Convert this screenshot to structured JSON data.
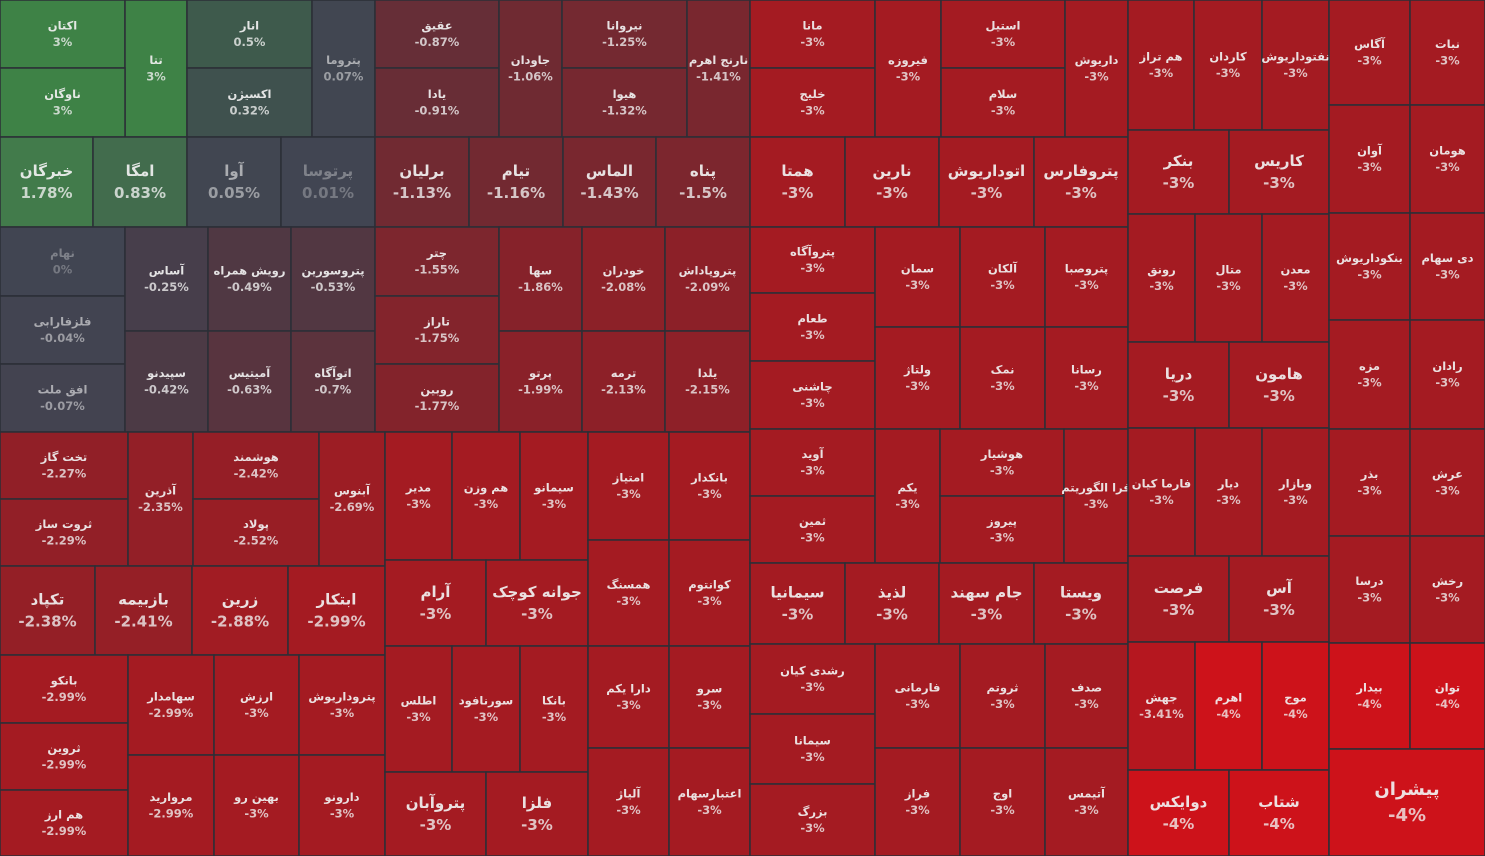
{
  "chart_data": {
    "type": "treemap",
    "categories": [
      "اکتان",
      "تتا",
      "ناوگان",
      "انار",
      "اکسیژن",
      "پتروما",
      "خبرگان",
      "امگا",
      "آوا",
      "پرتوسا",
      "عقیق",
      "یادا",
      "جاودان",
      "نیروانا",
      "هیوا",
      "نارنج اهرم",
      "برلیان",
      "تیام",
      "الماس",
      "پناه",
      "نهام",
      "فلزفارابی",
      "افق ملت",
      "آساس",
      "رویش همراه",
      "پتروسورین",
      "سپیدنو",
      "آمیتیس",
      "اتوآگاه",
      "چتر",
      "تاراز",
      "روبین",
      "سها",
      "خودران",
      "پتروپاداش",
      "پرتو",
      "ترمه",
      "یلدا",
      "تخت گاز",
      "ثروت ساز",
      "آذرین",
      "هوشمند",
      "پولاد",
      "آبنوس",
      "تکپاد",
      "بازبیمه",
      "زرین",
      "ابتکار",
      "بانکو",
      "ثروین",
      "هم ارز",
      "سهامدار",
      "ارزش",
      "پتروداریوش",
      "مرواريد",
      "بهین رو",
      "دارونو",
      "مدیر",
      "هم وزن",
      "سیمانو",
      "آرام",
      "جوانه کوچک",
      "اطلس",
      "سورنافود",
      "بانکا",
      "پتروآبان",
      "فلزا",
      "امتیاز",
      "بانکدار",
      "همسنگ",
      "کوانتوم",
      "دارا یکم",
      "سرو",
      "آلیاژ",
      "اعتبارسهام",
      "مانا",
      "خلیج",
      "فیروزه",
      "استیل",
      "سلام",
      "داریوش",
      "همتا",
      "نارین",
      "اتوداریوش",
      "پتروفارس",
      "پتروآگاه",
      "طعام",
      "چاشنی",
      "سمان",
      "آلکان",
      "پتروصبا",
      "ولتاژ",
      "نمک",
      "رسانا",
      "آوید",
      "ثمین",
      "یکم",
      "هوشیار",
      "پیروز",
      "فرا الگوریتم",
      "سیمانیا",
      "لذیذ",
      "جام سهند",
      "ویستا",
      "رشدی کیان",
      "سیمانا",
      "بزرگ",
      "فارمانی",
      "ثروتم",
      "صدف",
      "فراز",
      "اوج",
      "آتیمس",
      "هم تراز",
      "کاردان",
      "نفتوداریوش",
      "آگاس",
      "نبات",
      "بنکر",
      "کاریس",
      "آوان",
      "هومان",
      "رونق",
      "متال",
      "معدن",
      "بنکوداریوش",
      "دی سهام",
      "دریا",
      "هامون",
      "مزه",
      "رادان",
      "فارما کیان",
      "دیار",
      "وبازار",
      "بذر",
      "عرش",
      "فرصت",
      "آس",
      "درسا",
      "رخش",
      "جهش",
      "اهرم",
      "موج",
      "بیدار",
      "توان",
      "دوایکس",
      "شتاب",
      "پیشران"
    ],
    "values": [
      3,
      3,
      3,
      0.5,
      0.32,
      0.07,
      1.78,
      0.83,
      0.05,
      0.01,
      -0.87,
      -0.91,
      -1.06,
      -1.25,
      -1.32,
      -1.41,
      -1.13,
      -1.16,
      -1.43,
      -1.5,
      0,
      -0.04,
      -0.07,
      -0.25,
      -0.49,
      -0.53,
      -0.42,
      -0.63,
      -0.7,
      -1.55,
      -1.75,
      -1.77,
      -1.86,
      -2.08,
      -2.09,
      -1.99,
      -2.13,
      -2.15,
      -2.27,
      -2.29,
      -2.35,
      -2.42,
      -2.52,
      -2.69,
      -2.38,
      -2.41,
      -2.88,
      -2.99,
      -2.99,
      -2.99,
      -2.99,
      -2.99,
      -3,
      -3,
      -2.99,
      -3,
      -3,
      -3,
      -3,
      -3,
      -3,
      -3,
      -3,
      -3,
      -3,
      -3,
      -3,
      -3,
      -3,
      -3,
      -3,
      -3,
      -3,
      -3,
      -3,
      -3,
      -3,
      -3,
      -3,
      -3,
      -3,
      -3,
      -3,
      -3,
      -3,
      -3,
      -3,
      -3,
      -3,
      -3,
      -3,
      -3,
      -3,
      -3,
      -3,
      -3,
      -3,
      -3,
      -3,
      -3,
      -3,
      -3,
      -3,
      -3,
      -3,
      -3,
      -3,
      -3,
      -3,
      -3,
      -3,
      -3,
      -3,
      -3,
      -3,
      -3,
      -3,
      -3,
      -3,
      -3,
      -3,
      -3,
      -3,
      -3,
      -3,
      -3,
      -3,
      -3,
      -3,
      -3,
      -3,
      -3,
      -3,
      -3,
      -3,
      -3,
      -3,
      -3,
      -3,
      -3,
      -3.41,
      -4,
      -4,
      -4,
      -4,
      -4,
      -4,
      -4
    ],
    "value_labels": [
      "3%",
      "3%",
      "3%",
      "0.5%",
      "0.32%",
      "0.07%",
      "1.78%",
      "0.83%",
      "0.05%",
      "0.01%",
      "-0.87%",
      "-0.91%",
      "-1.06%",
      "-1.25%",
      "-1.32%",
      "-1.41%",
      "-1.13%",
      "-1.16%",
      "-1.43%",
      "-1.5%",
      "0%",
      "-0.04%",
      "-0.07%",
      "-0.25%",
      "-0.49%",
      "-0.53%",
      "-0.42%",
      "-0.63%",
      "-0.7%",
      "-1.55%",
      "-1.75%",
      "-1.77%",
      "-1.86%",
      "-2.08%",
      "-2.09%",
      "-1.99%",
      "-2.13%",
      "-2.15%",
      "-2.27%",
      "-2.29%",
      "-2.35%",
      "-2.42%",
      "-2.52%",
      "-2.69%",
      "-2.38%",
      "-2.41%",
      "-2.88%",
      "-2.99%",
      "-2.99%",
      "-2.99%",
      "-2.99%",
      "-2.99%",
      "-3%",
      "-3%",
      "-2.99%",
      "-3%",
      "-3%",
      "-3%",
      "-3%",
      "-3%",
      "-3%",
      "-3%",
      "-3%",
      "-3%",
      "-3%",
      "-3%",
      "-3%",
      "-3%",
      "-3%",
      "-3%",
      "-3%",
      "-3%",
      "-3%",
      "-3%",
      "-3%",
      "-3%",
      "-3%",
      "-3%",
      "-3%",
      "-3%",
      "-3%",
      "-3%",
      "-3%",
      "-3%",
      "-3%",
      "-3%",
      "-3%",
      "-3%",
      "-3%",
      "-3%",
      "-3%",
      "-3%",
      "-3%",
      "-3%",
      "-3%",
      "-3%",
      "-3%",
      "-3%",
      "-3%",
      "-3%",
      "-3%",
      "-3%",
      "-3%",
      "-3%",
      "-3%",
      "-3%",
      "-3%",
      "-3%",
      "-3%",
      "-3%",
      "-3%",
      "-3%",
      "-3%",
      "-3%",
      "-3%",
      "-3%",
      "-3%",
      "-3%",
      "-3%",
      "-3%",
      "-3%",
      "-3%",
      "-3%",
      "-3%",
      "-3%",
      "-3%",
      "-3%",
      "-3%",
      "-3%",
      "-3%",
      "-3%",
      "-3%",
      "-3%",
      "-3%",
      "-3%",
      "-3%",
      "-3%",
      "-3%",
      "-3%",
      "-3%",
      "-3.41%",
      "-4%",
      "-4%",
      "-4%",
      "-4%",
      "-4%",
      "-4%",
      "-4%"
    ]
  }
}
